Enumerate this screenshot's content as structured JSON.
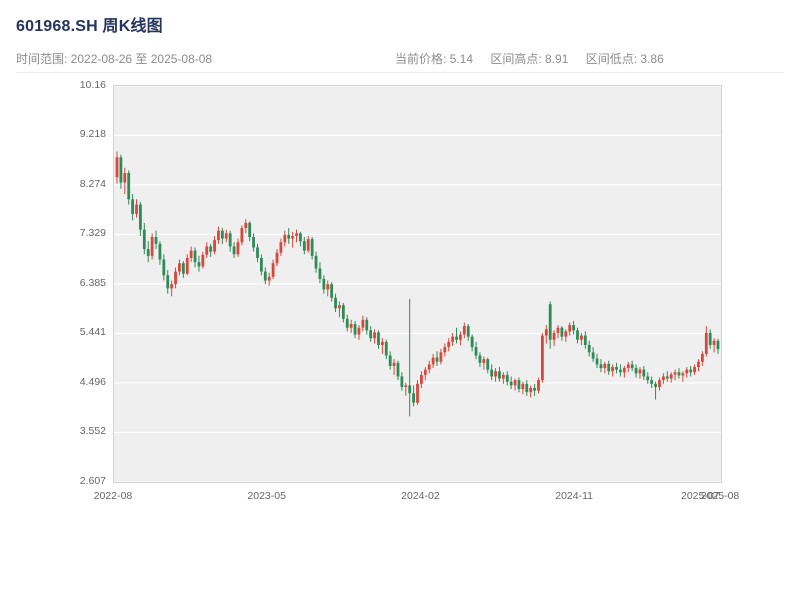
{
  "header": {
    "title": "601968.SH 周K线图",
    "subtitle": "时间范围: 2022-08-26 至 2025-08-08",
    "stats": [
      "当前价格: 5.14",
      "区间高点: 8.91",
      "区间低点: 3.86"
    ]
  },
  "chart_data": {
    "type": "candlestick",
    "title": "601968.SH 周K线图",
    "symbol": "601968.SH",
    "interval": "weekly",
    "date_range_start": "2022-08-26",
    "date_range_end": "2025-08-08",
    "current_price": 5.14,
    "range_high": 8.91,
    "range_low": 3.86,
    "ylim": [
      2.607,
      10.16
    ],
    "ytick_labels": [
      "10.16",
      "9.218",
      "8.274",
      "7.329",
      "6.385",
      "5.441",
      "4.496",
      "3.552",
      "2.607"
    ],
    "ytick_values": [
      10.16,
      9.218,
      8.274,
      7.329,
      6.385,
      5.441,
      4.496,
      3.552,
      2.607
    ],
    "xticks": [
      {
        "label": "2022-08",
        "pos": 0.0
      },
      {
        "label": "2023-05",
        "pos": 0.2532
      },
      {
        "label": "2024-02",
        "pos": 0.5065
      },
      {
        "label": "2024-11",
        "pos": 0.7597
      },
      {
        "label": "2025-07",
        "pos": 0.9675
      },
      {
        "label": "2025-08",
        "pos": 1.0
      }
    ],
    "colors": {
      "up": "#d9473c",
      "down": "#2e8b57",
      "plot_bg": "#efefef",
      "grid": "#ffffff",
      "title": "#25335e",
      "subtext": "#8c8c8c"
    },
    "grid": true,
    "candles_ohlc": [
      [
        8.42,
        8.91,
        8.3,
        8.8
      ],
      [
        8.8,
        8.85,
        8.2,
        8.32
      ],
      [
        8.32,
        8.6,
        8.1,
        8.5
      ],
      [
        8.5,
        8.55,
        7.9,
        8.0
      ],
      [
        8.0,
        8.1,
        7.6,
        7.72
      ],
      [
        7.72,
        8.0,
        7.65,
        7.9
      ],
      [
        7.9,
        7.95,
        7.3,
        7.42
      ],
      [
        7.42,
        7.55,
        6.95,
        7.05
      ],
      [
        7.05,
        7.2,
        6.8,
        6.92
      ],
      [
        6.92,
        7.35,
        6.85,
        7.28
      ],
      [
        7.28,
        7.4,
        7.05,
        7.15
      ],
      [
        7.15,
        7.2,
        6.75,
        6.85
      ],
      [
        6.85,
        6.95,
        6.45,
        6.55
      ],
      [
        6.55,
        6.65,
        6.2,
        6.3
      ],
      [
        6.3,
        6.45,
        6.15,
        6.38
      ],
      [
        6.38,
        6.7,
        6.3,
        6.62
      ],
      [
        6.62,
        6.85,
        6.55,
        6.78
      ],
      [
        6.78,
        6.82,
        6.5,
        6.58
      ],
      [
        6.58,
        6.95,
        6.55,
        6.88
      ],
      [
        6.88,
        7.1,
        6.8,
        7.02
      ],
      [
        7.02,
        7.08,
        6.7,
        6.8
      ],
      [
        6.8,
        6.92,
        6.62,
        6.72
      ],
      [
        6.72,
        7.0,
        6.68,
        6.94
      ],
      [
        6.94,
        7.18,
        6.88,
        7.1
      ],
      [
        7.1,
        7.15,
        6.9,
        7.0
      ],
      [
        7.0,
        7.3,
        6.95,
        7.22
      ],
      [
        7.22,
        7.48,
        7.15,
        7.4
      ],
      [
        7.4,
        7.45,
        7.15,
        7.25
      ],
      [
        7.25,
        7.42,
        7.18,
        7.35
      ],
      [
        7.35,
        7.4,
        7.0,
        7.1
      ],
      [
        7.1,
        7.18,
        6.88,
        6.95
      ],
      [
        6.95,
        7.25,
        6.9,
        7.18
      ],
      [
        7.18,
        7.5,
        7.12,
        7.45
      ],
      [
        7.45,
        7.62,
        7.35,
        7.55
      ],
      [
        7.55,
        7.58,
        7.2,
        7.28
      ],
      [
        7.28,
        7.35,
        7.0,
        7.08
      ],
      [
        7.08,
        7.15,
        6.8,
        6.88
      ],
      [
        6.88,
        6.95,
        6.55,
        6.62
      ],
      [
        6.62,
        6.7,
        6.38,
        6.45
      ],
      [
        6.45,
        6.6,
        6.35,
        6.52
      ],
      [
        6.52,
        6.85,
        6.48,
        6.78
      ],
      [
        6.78,
        7.05,
        6.72,
        6.98
      ],
      [
        6.98,
        7.25,
        6.92,
        7.18
      ],
      [
        7.18,
        7.4,
        7.1,
        7.32
      ],
      [
        7.32,
        7.45,
        7.15,
        7.25
      ],
      [
        7.25,
        7.38,
        7.08,
        7.3
      ],
      [
        7.3,
        7.42,
        7.18,
        7.35
      ],
      [
        7.35,
        7.38,
        7.1,
        7.2
      ],
      [
        7.2,
        7.28,
        6.95,
        7.02
      ],
      [
        7.02,
        7.3,
        6.98,
        7.24
      ],
      [
        7.24,
        7.28,
        6.85,
        6.92
      ],
      [
        6.92,
        7.0,
        6.6,
        6.68
      ],
      [
        6.68,
        6.8,
        6.4,
        6.48
      ],
      [
        6.48,
        6.55,
        6.2,
        6.28
      ],
      [
        6.28,
        6.45,
        6.15,
        6.38
      ],
      [
        6.38,
        6.42,
        6.05,
        6.12
      ],
      [
        6.12,
        6.2,
        5.85,
        5.92
      ],
      [
        5.92,
        6.05,
        5.75,
        5.98
      ],
      [
        5.98,
        6.02,
        5.65,
        5.72
      ],
      [
        5.72,
        5.8,
        5.48,
        5.55
      ],
      [
        5.55,
        5.7,
        5.45,
        5.62
      ],
      [
        5.62,
        5.68,
        5.35,
        5.42
      ],
      [
        5.42,
        5.6,
        5.32,
        5.55
      ],
      [
        5.55,
        5.78,
        5.48,
        5.7
      ],
      [
        5.7,
        5.75,
        5.42,
        5.5
      ],
      [
        5.5,
        5.58,
        5.28,
        5.35
      ],
      [
        5.35,
        5.52,
        5.25,
        5.46
      ],
      [
        5.46,
        5.5,
        5.15,
        5.22
      ],
      [
        5.22,
        5.35,
        5.05,
        5.28
      ],
      [
        5.28,
        5.32,
        4.95,
        5.02
      ],
      [
        5.02,
        5.1,
        4.75,
        4.82
      ],
      [
        4.82,
        4.95,
        4.65,
        4.88
      ],
      [
        4.88,
        4.92,
        4.55,
        4.62
      ],
      [
        4.62,
        4.7,
        4.35,
        4.42
      ],
      [
        4.42,
        4.5,
        4.25,
        4.45
      ],
      [
        4.45,
        6.1,
        3.86,
        4.3
      ],
      [
        4.3,
        4.45,
        4.05,
        4.12
      ],
      [
        4.12,
        4.55,
        4.08,
        4.48
      ],
      [
        4.48,
        4.72,
        4.4,
        4.65
      ],
      [
        4.65,
        4.8,
        4.55,
        4.75
      ],
      [
        4.75,
        4.92,
        4.68,
        4.85
      ],
      [
        4.85,
        5.05,
        4.78,
        4.98
      ],
      [
        4.98,
        5.1,
        4.82,
        4.9
      ],
      [
        4.9,
        5.15,
        4.85,
        5.08
      ],
      [
        5.08,
        5.25,
        5.0,
        5.18
      ],
      [
        5.18,
        5.35,
        5.1,
        5.28
      ],
      [
        5.28,
        5.45,
        5.2,
        5.38
      ],
      [
        5.38,
        5.55,
        5.25,
        5.32
      ],
      [
        5.32,
        5.48,
        5.22,
        5.42
      ],
      [
        5.42,
        5.65,
        5.35,
        5.58
      ],
      [
        5.58,
        5.62,
        5.3,
        5.38
      ],
      [
        5.38,
        5.42,
        5.1,
        5.18
      ],
      [
        5.18,
        5.28,
        4.95,
        5.02
      ],
      [
        5.02,
        5.08,
        4.8,
        4.88
      ],
      [
        4.88,
        5.0,
        4.75,
        4.95
      ],
      [
        4.95,
        4.98,
        4.68,
        4.75
      ],
      [
        4.75,
        4.85,
        4.55,
        4.62
      ],
      [
        4.62,
        4.78,
        4.52,
        4.72
      ],
      [
        4.72,
        4.8,
        4.52,
        4.58
      ],
      [
        4.58,
        4.7,
        4.48,
        4.65
      ],
      [
        4.65,
        4.72,
        4.45,
        4.52
      ],
      [
        4.52,
        4.62,
        4.38,
        4.45
      ],
      [
        4.45,
        4.58,
        4.35,
        4.55
      ],
      [
        4.55,
        4.6,
        4.32,
        4.38
      ],
      [
        4.38,
        4.52,
        4.28,
        4.48
      ],
      [
        4.48,
        4.55,
        4.25,
        4.32
      ],
      [
        4.32,
        4.45,
        4.22,
        4.4
      ],
      [
        4.4,
        4.48,
        4.25,
        4.35
      ],
      [
        4.35,
        4.6,
        4.3,
        4.55
      ],
      [
        4.55,
        5.45,
        4.5,
        5.4
      ],
      [
        5.4,
        5.6,
        5.25,
        5.52
      ],
      [
        6.0,
        6.05,
        5.15,
        5.32
      ],
      [
        5.32,
        5.5,
        5.2,
        5.45
      ],
      [
        5.45,
        5.6,
        5.35,
        5.55
      ],
      [
        5.55,
        5.58,
        5.3,
        5.38
      ],
      [
        5.38,
        5.52,
        5.28,
        5.48
      ],
      [
        5.48,
        5.65,
        5.4,
        5.6
      ],
      [
        5.6,
        5.68,
        5.42,
        5.5
      ],
      [
        5.5,
        5.55,
        5.25,
        5.32
      ],
      [
        5.32,
        5.45,
        5.22,
        5.4
      ],
      [
        5.4,
        5.48,
        5.15,
        5.22
      ],
      [
        5.22,
        5.3,
        5.0,
        5.08
      ],
      [
        5.08,
        5.18,
        4.9,
        4.96
      ],
      [
        4.96,
        5.05,
        4.78,
        4.85
      ],
      [
        4.85,
        4.95,
        4.7,
        4.78
      ],
      [
        4.78,
        4.9,
        4.68,
        4.86
      ],
      [
        4.86,
        4.92,
        4.65,
        4.72
      ],
      [
        4.72,
        4.85,
        4.62,
        4.8
      ],
      [
        4.8,
        4.88,
        4.68,
        4.75
      ],
      [
        4.75,
        4.85,
        4.62,
        4.7
      ],
      [
        4.7,
        4.82,
        4.6,
        4.78
      ],
      [
        4.78,
        4.9,
        4.7,
        4.85
      ],
      [
        4.85,
        4.92,
        4.72,
        4.78
      ],
      [
        4.78,
        4.85,
        4.6,
        4.68
      ],
      [
        4.68,
        4.8,
        4.58,
        4.75
      ],
      [
        4.75,
        4.82,
        4.55,
        4.62
      ],
      [
        4.62,
        4.7,
        4.48,
        4.55
      ],
      [
        4.55,
        4.62,
        4.4,
        4.48
      ],
      [
        4.48,
        4.52,
        4.18,
        4.42
      ],
      [
        4.42,
        4.6,
        4.35,
        4.55
      ],
      [
        4.55,
        4.68,
        4.48,
        4.62
      ],
      [
        4.62,
        4.72,
        4.52,
        4.58
      ],
      [
        4.58,
        4.7,
        4.5,
        4.66
      ],
      [
        4.66,
        4.75,
        4.55,
        4.7
      ],
      [
        4.7,
        4.78,
        4.58,
        4.64
      ],
      [
        4.64,
        4.72,
        4.52,
        4.68
      ],
      [
        4.68,
        4.8,
        4.6,
        4.75
      ],
      [
        4.75,
        4.82,
        4.62,
        4.7
      ],
      [
        4.7,
        4.85,
        4.65,
        4.8
      ],
      [
        4.8,
        4.95,
        4.72,
        4.9
      ],
      [
        4.9,
        5.1,
        4.82,
        5.05
      ],
      [
        5.05,
        5.58,
        5.0,
        5.45
      ],
      [
        5.45,
        5.52,
        5.15,
        5.22
      ],
      [
        5.22,
        5.35,
        5.08,
        5.3
      ],
      [
        5.3,
        5.34,
        5.05,
        5.14
      ]
    ]
  }
}
